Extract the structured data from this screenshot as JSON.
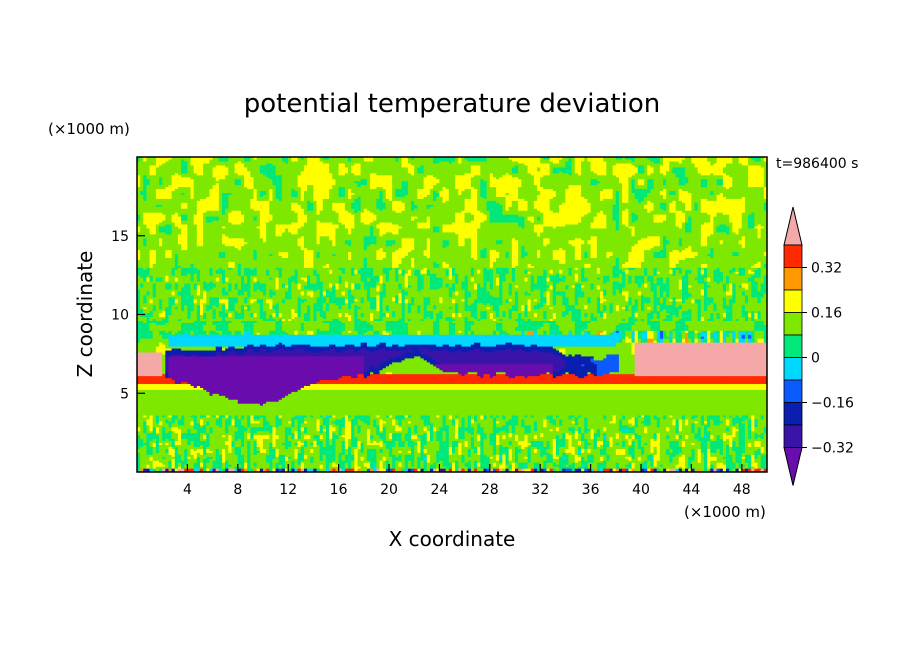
{
  "chart_data": {
    "type": "heatmap",
    "title": "potential temperature deviation",
    "time_label": "t=986400 s",
    "xlabel": "X coordinate",
    "ylabel": "Z coordinate",
    "x_unit": "(×1000 m)",
    "y_unit": "(×1000 m)",
    "xlim": [
      0,
      50
    ],
    "ylim": [
      0,
      20
    ],
    "x_ticks": [
      4,
      8,
      12,
      16,
      20,
      24,
      28,
      32,
      36,
      40,
      44,
      48
    ],
    "y_ticks": [
      5,
      10,
      15
    ],
    "colorbar": {
      "levels": [
        -0.4,
        -0.32,
        -0.24,
        -0.16,
        -0.08,
        0,
        0.08,
        0.16,
        0.24,
        0.32,
        0.4
      ],
      "labeled_levels": [
        "0.32",
        "0.16",
        "0",
        "−0.16",
        "−0.32"
      ],
      "colors": [
        "#6a0dad",
        "#3a14a8",
        "#0a1fb0",
        "#0a5bff",
        "#00d8ff",
        "#00e87a",
        "#7fe800",
        "#ffff00",
        "#ff9900",
        "#ff2a00",
        "#f4a8a8"
      ],
      "extend": "both"
    },
    "features": [
      {
        "name": "cold pool",
        "x_range": [
          2,
          38
        ],
        "z_range": [
          4,
          8.2
        ],
        "value": -0.36
      },
      {
        "name": "warm layer",
        "x_range": [
          0,
          50
        ],
        "z_range": [
          5.6,
          6.2
        ],
        "value": 0.3
      },
      {
        "name": "warm region",
        "x_range": [
          39,
          50
        ],
        "z_range": [
          6.2,
          8.4
        ],
        "value": 0.4
      }
    ]
  }
}
